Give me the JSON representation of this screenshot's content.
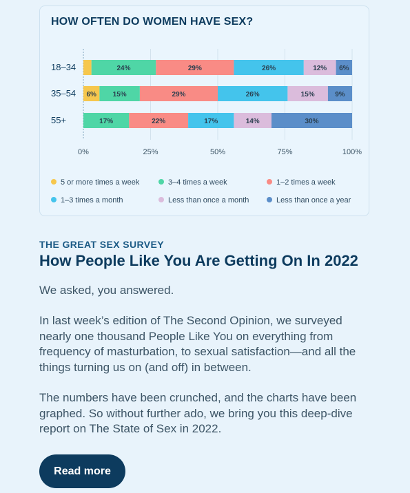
{
  "chart_data": {
    "type": "bar",
    "orientation": "horizontal",
    "stacked": true,
    "title": "HOW OFTEN DO WOMEN HAVE SEX?",
    "categories": [
      "18–34",
      "35–54",
      "55+"
    ],
    "series": [
      {
        "name": "5 or more times a week",
        "color": "#f6c74d",
        "values": [
          3,
          6,
          0
        ],
        "labels": [
          "",
          "6%",
          ""
        ]
      },
      {
        "name": "3–4 times a week",
        "color": "#4fd6a6",
        "values": [
          24,
          15,
          17
        ],
        "labels": [
          "24%",
          "15%",
          "17%"
        ]
      },
      {
        "name": "1–2 times a week",
        "color": "#f98b85",
        "values": [
          29,
          29,
          22
        ],
        "labels": [
          "29%",
          "29%",
          "22%"
        ]
      },
      {
        "name": "1–3 times a month",
        "color": "#44c4ec",
        "values": [
          26,
          26,
          17
        ],
        "labels": [
          "26%",
          "26%",
          "17%"
        ]
      },
      {
        "name": "Less than once a month",
        "color": "#dbbcdc",
        "values": [
          12,
          15,
          14
        ],
        "labels": [
          "12%",
          "15%",
          "14%"
        ]
      },
      {
        "name": "Less than once a year",
        "color": "#5b8ec9",
        "values": [
          6,
          9,
          30
        ],
        "labels": [
          "6%",
          "9%",
          "30%"
        ]
      }
    ],
    "xticks": [
      "0%",
      "25%",
      "50%",
      "75%",
      "100%"
    ],
    "xlim": [
      0,
      100
    ],
    "grid": true,
    "legend_position": "bottom"
  },
  "article": {
    "kicker": "THE GREAT SEX SURVEY",
    "headline": "How People Like You Are Getting On In 2022",
    "paragraphs": [
      "We asked, you answered.",
      "In last week’s edition of The Second Opinion, we surveyed nearly one thousand People Like You on everything from frequency of masturbation, to sexual satisfaction—and all the things turning us on (and off) in between.",
      "The numbers have been crunched, and the charts have been graphed. So without further ado, we bring you this deep-dive report on The State of Sex in 2022."
    ],
    "read_more_label": "Read more"
  }
}
